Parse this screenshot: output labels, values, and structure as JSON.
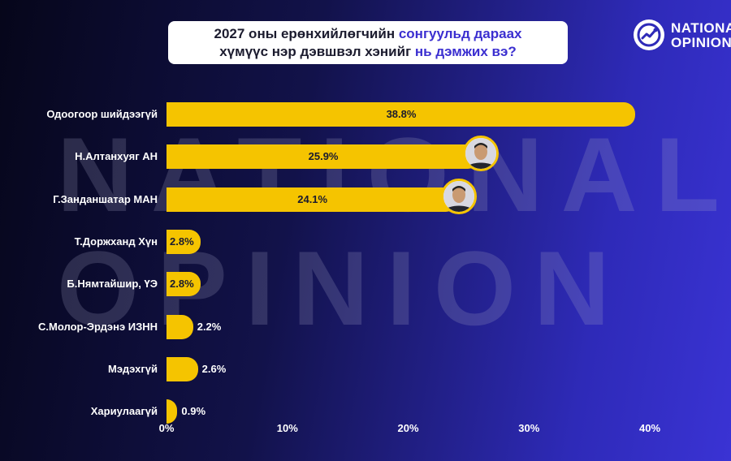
{
  "title": {
    "line1_a": "2027 оны ерөнхийлөгчийн",
    "line1_b": "сонгуульд дараах",
    "line2_a": "хүмүүс нэр дэвшвэл хэнийг",
    "line2_b": "нь дэмжих вэ?"
  },
  "brand": {
    "line1": "NATIONAL",
    "line2": "OPINION",
    "logo_icon": "chart-circle-icon"
  },
  "watermark": {
    "line1": "NATIONAL",
    "line2": "OPINION"
  },
  "colors": {
    "bar": "#f5c400",
    "accent": "#3b2fd0"
  },
  "chart_data": {
    "type": "bar",
    "orientation": "horizontal",
    "categories": [
      "Одоогоор шийдээгүй",
      "Н.Алтанхуяг АН",
      "Г.Занданшатар МАН",
      "Т.Доржханд Хүн",
      "Б.Нямтайшир, ҮЭ",
      "С.Молор-Эрдэнэ ИЗНН",
      "Мэдэхгүй",
      "Хариулаагүй"
    ],
    "values": [
      38.8,
      25.9,
      24.1,
      2.8,
      2.8,
      2.2,
      2.6,
      0.9
    ],
    "value_labels": [
      "38.8%",
      "25.9%",
      "24.1%",
      "2.8%",
      "2.8%",
      "2.2%",
      "2.6%",
      "0.9%"
    ],
    "xlim": [
      0,
      40
    ],
    "x_ticks": [
      "0%",
      "10%",
      "20%",
      "30%",
      "40%"
    ],
    "x_tick_values": [
      0,
      10,
      20,
      30,
      40
    ],
    "grid": false
  }
}
